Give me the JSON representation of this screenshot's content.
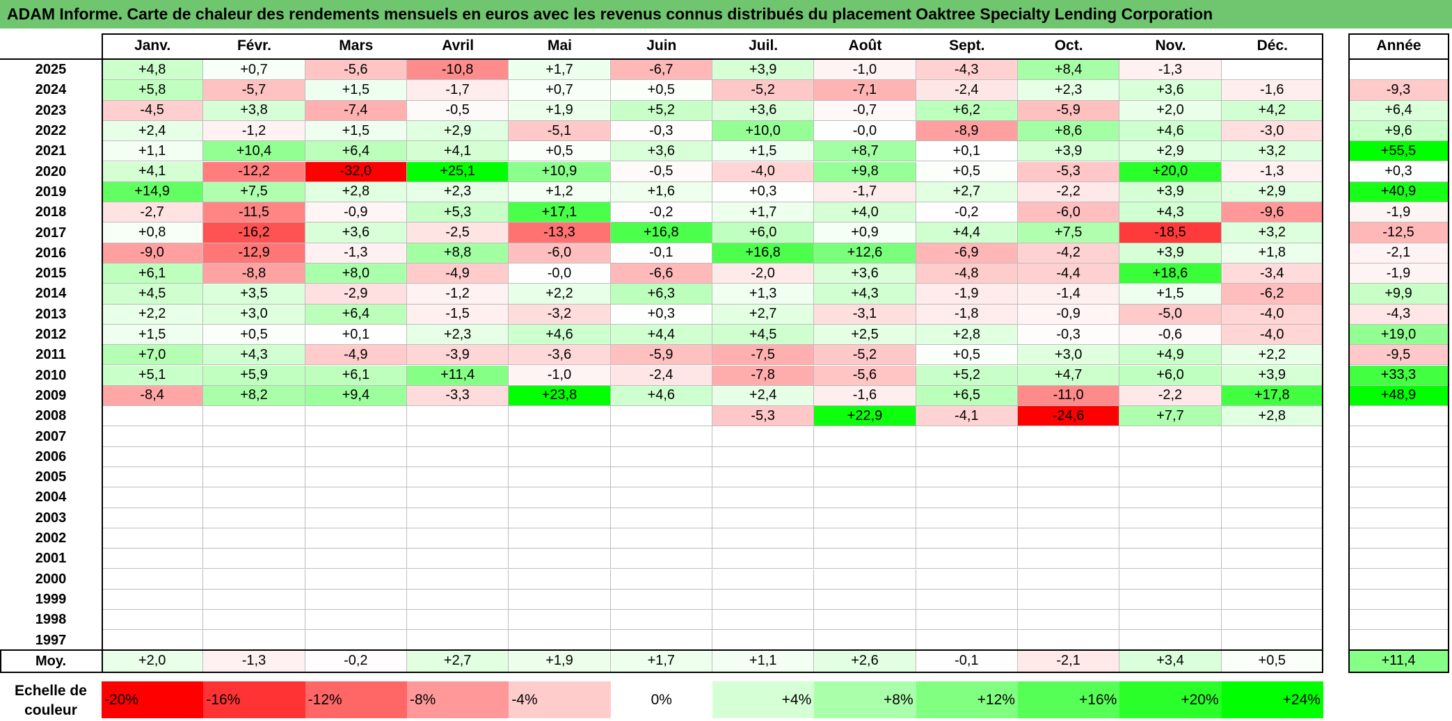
{
  "title": "ADAM Informe. Carte de chaleur des rendements mensuels en euros avec les revenus connus distribués du placement Oaktree Specialty Lending Corporation",
  "chart_data": {
    "type": "heatmap",
    "title": "ADAM Informe. Carte de chaleur des rendements mensuels en euros avec les revenus connus distribués du placement Oaktree Specialty Lending Corporation",
    "months": [
      "Janv.",
      "Févr.",
      "Mars",
      "Avril",
      "Mai",
      "Juin",
      "Juil.",
      "Août",
      "Sept.",
      "Oct.",
      "Nov.",
      "Déc."
    ],
    "annual_label": "Année",
    "rows": [
      {
        "year": "2025",
        "values": [
          4.8,
          0.7,
          -5.6,
          -10.8,
          1.7,
          -6.7,
          3.9,
          -1.0,
          -4.3,
          8.4,
          -1.3,
          null
        ],
        "annual": null
      },
      {
        "year": "2024",
        "values": [
          5.8,
          -5.7,
          1.5,
          -1.7,
          0.7,
          0.5,
          -5.2,
          -7.1,
          -2.4,
          2.3,
          3.6,
          -1.6
        ],
        "annual": -9.3
      },
      {
        "year": "2023",
        "values": [
          -4.5,
          3.8,
          -7.4,
          -0.5,
          1.9,
          5.2,
          3.6,
          -0.7,
          6.2,
          -5.9,
          2.0,
          4.2
        ],
        "annual": 6.4
      },
      {
        "year": "2022",
        "values": [
          2.4,
          -1.2,
          1.5,
          2.9,
          -5.1,
          -0.3,
          10.0,
          "-0,0",
          -8.9,
          8.6,
          4.6,
          -3.0
        ],
        "annual": 9.6
      },
      {
        "year": "2021",
        "values": [
          1.1,
          10.4,
          6.4,
          4.1,
          0.5,
          3.6,
          1.5,
          8.7,
          0.1,
          3.9,
          2.9,
          3.2
        ],
        "annual": 55.5
      },
      {
        "year": "2020",
        "values": [
          4.1,
          -12.2,
          -32.0,
          25.1,
          10.9,
          -0.5,
          -4.0,
          9.8,
          0.5,
          -5.3,
          20.0,
          -1.3
        ],
        "annual": 0.3
      },
      {
        "year": "2019",
        "values": [
          14.9,
          7.5,
          2.8,
          2.3,
          1.2,
          1.6,
          0.3,
          -1.7,
          2.7,
          -2.2,
          3.9,
          2.9
        ],
        "annual": 40.9
      },
      {
        "year": "2018",
        "values": [
          -2.7,
          -11.5,
          -0.9,
          5.3,
          17.1,
          -0.2,
          1.7,
          4.0,
          -0.2,
          -6.0,
          4.3,
          -9.6
        ],
        "annual": -1.9
      },
      {
        "year": "2017",
        "values": [
          0.8,
          -16.2,
          3.6,
          -2.5,
          -13.3,
          16.8,
          6.0,
          0.9,
          4.4,
          7.5,
          -18.5,
          3.2
        ],
        "annual": -12.5
      },
      {
        "year": "2016",
        "values": [
          -9.0,
          -12.9,
          -1.3,
          8.8,
          -6.0,
          -0.1,
          16.8,
          12.6,
          -6.9,
          -4.2,
          3.9,
          1.8
        ],
        "annual": -2.1
      },
      {
        "year": "2015",
        "values": [
          6.1,
          -8.8,
          8.0,
          -4.9,
          "-0,0",
          -6.6,
          -2.0,
          3.6,
          -4.8,
          -4.4,
          18.6,
          -3.4
        ],
        "annual": -1.9
      },
      {
        "year": "2014",
        "values": [
          4.5,
          3.5,
          -2.9,
          -1.2,
          2.2,
          6.3,
          1.3,
          4.3,
          -1.9,
          -1.4,
          1.5,
          -6.2
        ],
        "annual": 9.9
      },
      {
        "year": "2013",
        "values": [
          2.2,
          3.0,
          6.4,
          -1.5,
          -3.2,
          0.3,
          2.7,
          -3.1,
          -1.8,
          -0.9,
          -5.0,
          -4.0
        ],
        "annual": -4.3
      },
      {
        "year": "2012",
        "values": [
          1.5,
          0.5,
          0.1,
          2.3,
          4.6,
          4.4,
          4.5,
          2.5,
          2.8,
          -0.3,
          -0.6,
          -4.0
        ],
        "annual": 19.0
      },
      {
        "year": "2011",
        "values": [
          7.0,
          4.3,
          -4.9,
          -3.9,
          -3.6,
          -5.9,
          -7.5,
          -5.2,
          0.5,
          3.0,
          4.9,
          2.2
        ],
        "annual": -9.5
      },
      {
        "year": "2010",
        "values": [
          5.1,
          5.9,
          6.1,
          11.4,
          -1.0,
          -2.4,
          -7.8,
          -5.6,
          5.2,
          4.7,
          6.0,
          3.9
        ],
        "annual": 33.3
      },
      {
        "year": "2009",
        "values": [
          -8.4,
          8.2,
          9.4,
          -3.3,
          23.8,
          4.6,
          2.4,
          -1.6,
          6.5,
          -11.0,
          -2.2,
          17.8
        ],
        "annual": 48.9
      },
      {
        "year": "2008",
        "values": [
          null,
          null,
          null,
          null,
          null,
          null,
          -5.3,
          22.9,
          -4.1,
          -24.6,
          7.7,
          2.8
        ],
        "annual": null
      },
      {
        "year": "2007",
        "values": [
          null,
          null,
          null,
          null,
          null,
          null,
          null,
          null,
          null,
          null,
          null,
          null
        ],
        "annual": null
      },
      {
        "year": "2006",
        "values": [
          null,
          null,
          null,
          null,
          null,
          null,
          null,
          null,
          null,
          null,
          null,
          null
        ],
        "annual": null
      },
      {
        "year": "2005",
        "values": [
          null,
          null,
          null,
          null,
          null,
          null,
          null,
          null,
          null,
          null,
          null,
          null
        ],
        "annual": null
      },
      {
        "year": "2004",
        "values": [
          null,
          null,
          null,
          null,
          null,
          null,
          null,
          null,
          null,
          null,
          null,
          null
        ],
        "annual": null
      },
      {
        "year": "2003",
        "values": [
          null,
          null,
          null,
          null,
          null,
          null,
          null,
          null,
          null,
          null,
          null,
          null
        ],
        "annual": null
      },
      {
        "year": "2002",
        "values": [
          null,
          null,
          null,
          null,
          null,
          null,
          null,
          null,
          null,
          null,
          null,
          null
        ],
        "annual": null
      },
      {
        "year": "2001",
        "values": [
          null,
          null,
          null,
          null,
          null,
          null,
          null,
          null,
          null,
          null,
          null,
          null
        ],
        "annual": null
      },
      {
        "year": "2000",
        "values": [
          null,
          null,
          null,
          null,
          null,
          null,
          null,
          null,
          null,
          null,
          null,
          null
        ],
        "annual": null
      },
      {
        "year": "1999",
        "values": [
          null,
          null,
          null,
          null,
          null,
          null,
          null,
          null,
          null,
          null,
          null,
          null
        ],
        "annual": null
      },
      {
        "year": "1998",
        "values": [
          null,
          null,
          null,
          null,
          null,
          null,
          null,
          null,
          null,
          null,
          null,
          null
        ],
        "annual": null
      },
      {
        "year": "1997",
        "values": [
          null,
          null,
          null,
          null,
          null,
          null,
          null,
          null,
          null,
          null,
          null,
          null
        ],
        "annual": null
      }
    ],
    "average": {
      "label": "Moy.",
      "values": [
        2.0,
        -1.3,
        -0.2,
        2.7,
        1.9,
        1.7,
        1.1,
        2.6,
        -0.1,
        -2.1,
        3.4,
        0.5
      ],
      "annual": 11.4
    },
    "color_scale": {
      "label": "Echelle de couleur",
      "stops": [
        "-20%",
        "-16%",
        "-12%",
        "-8%",
        "-4%",
        "0%",
        "+4%",
        "+8%",
        "+12%",
        "+16%",
        "+20%",
        "+24%"
      ],
      "stop_values": [
        -20,
        -16,
        -12,
        -8,
        -4,
        0,
        4,
        8,
        12,
        16,
        20,
        24
      ],
      "negative_color": "#ff0000",
      "positive_color": "#00ff00",
      "neutral_color": "#ffffff"
    }
  }
}
